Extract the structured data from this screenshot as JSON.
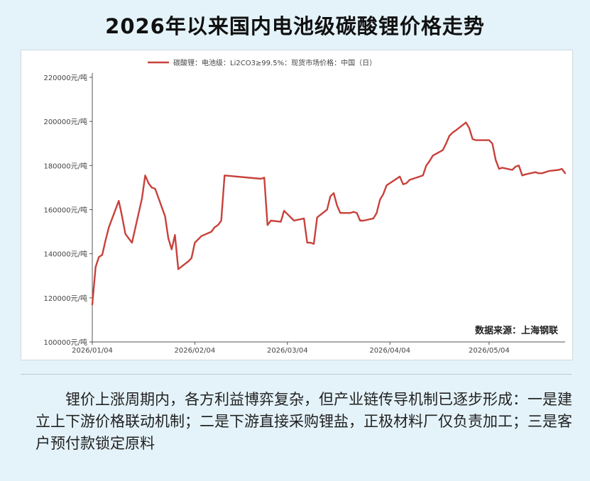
{
  "title": "2026年以来国内电池级碳酸锂价格走势",
  "source_note": "数据来源：上海钢联",
  "caption": "锂价上涨周期内，各方利益博弈复杂，但产业链传导机制已逐步形成：一是建立上下游价格联动机制；二是下游直接采购锂盐，正极材料厂仅负责加工；三是客户预付款锁定原料",
  "colors": {
    "line": "#c8413b",
    "background": "#e4f3fa",
    "panel": "#ffffff",
    "axis": "#555555"
  },
  "chart_data": {
    "type": "line",
    "title": "2026年以来国内电池级碳酸锂价格走势",
    "xlabel": "",
    "ylabel": "",
    "legend": {
      "label": "碳酸锂：电池级：Li2CO3≥99.5%：现货市场价格：中国（日）",
      "position": "top"
    },
    "ylim": [
      100000,
      220000
    ],
    "yticks": [
      100000,
      120000,
      140000,
      160000,
      180000,
      200000,
      220000
    ],
    "ytick_labels": [
      "100000元/吨",
      "120000元/吨",
      "140000元/吨",
      "160000元/吨",
      "180000元/吨",
      "200000元/吨",
      "220000元/吨"
    ],
    "xticks": [
      "2026/01/04",
      "2026/02/04",
      "2026/03/04",
      "2026/04/04",
      "2026/05/04"
    ],
    "grid": false,
    "series": [
      {
        "name": "碳酸锂：电池级：Li2CO3≥99.5%：现货市场价格：中国（日）",
        "x": [
          "2026/01/04",
          "2026/01/05",
          "2026/01/06",
          "2026/01/07",
          "2026/01/08",
          "2026/01/09",
          "2026/01/12",
          "2026/01/13",
          "2026/01/14",
          "2026/01/15",
          "2026/01/16",
          "2026/01/19",
          "2026/01/20",
          "2026/01/21",
          "2026/01/22",
          "2026/01/23",
          "2026/01/26",
          "2026/01/27",
          "2026/01/28",
          "2026/01/29",
          "2026/01/30",
          "2026/02/02",
          "2026/02/03",
          "2026/02/04",
          "2026/02/05",
          "2026/02/06",
          "2026/02/09",
          "2026/02/10",
          "2026/02/11",
          "2026/02/12",
          "2026/02/13",
          "2026/02/24",
          "2026/02/25",
          "2026/02/26",
          "2026/02/27",
          "2026/03/02",
          "2026/03/03",
          "2026/03/04",
          "2026/03/05",
          "2026/03/06",
          "2026/03/09",
          "2026/03/10",
          "2026/03/11",
          "2026/03/12",
          "2026/03/13",
          "2026/03/16",
          "2026/03/17",
          "2026/03/18",
          "2026/03/19",
          "2026/03/20",
          "2026/03/23",
          "2026/03/24",
          "2026/03/25",
          "2026/03/26",
          "2026/03/27",
          "2026/03/30",
          "2026/03/31",
          "2026/04/01",
          "2026/04/02",
          "2026/04/03",
          "2026/04/07",
          "2026/04/08",
          "2026/04/09",
          "2026/04/10",
          "2026/04/13",
          "2026/04/14",
          "2026/04/15",
          "2026/04/16",
          "2026/04/17",
          "2026/04/20",
          "2026/04/21",
          "2026/04/22",
          "2026/04/23",
          "2026/04/24",
          "2026/04/27",
          "2026/04/28",
          "2026/04/29",
          "2026/04/30",
          "2026/05/04",
          "2026/05/05",
          "2026/05/06",
          "2026/05/07",
          "2026/05/08",
          "2026/05/11",
          "2026/05/12",
          "2026/05/13",
          "2026/05/14",
          "2026/05/15",
          "2026/05/18",
          "2026/05/19",
          "2026/05/20",
          "2026/05/21",
          "2026/05/22",
          "2026/05/25",
          "2026/05/26",
          "2026/05/27"
        ],
        "values": [
          117000,
          134000,
          138500,
          139500,
          146000,
          152000,
          164000,
          157000,
          149000,
          147000,
          145000,
          165000,
          175500,
          172000,
          170000,
          169500,
          157000,
          147000,
          142000,
          148500,
          133000,
          136500,
          138000,
          145000,
          146500,
          148000,
          150000,
          152000,
          153000,
          155000,
          175500,
          174000,
          174500,
          153000,
          155000,
          154500,
          159500,
          158000,
          156500,
          155000,
          156000,
          145000,
          145000,
          144500,
          156500,
          160000,
          166000,
          167500,
          162000,
          158500,
          158500,
          159000,
          158500,
          155000,
          155000,
          156000,
          158500,
          164500,
          167000,
          171000,
          175000,
          171500,
          172000,
          173500,
          175000,
          175500,
          180000,
          182000,
          184500,
          187000,
          190000,
          193500,
          195000,
          196000,
          199500,
          197000,
          192000,
          191500,
          191500,
          190000,
          182500,
          178500,
          179000,
          178000,
          179500,
          180000,
          175500,
          176000,
          177000,
          176500,
          176500,
          177000,
          177500,
          178000,
          178500,
          176500
        ]
      }
    ]
  }
}
